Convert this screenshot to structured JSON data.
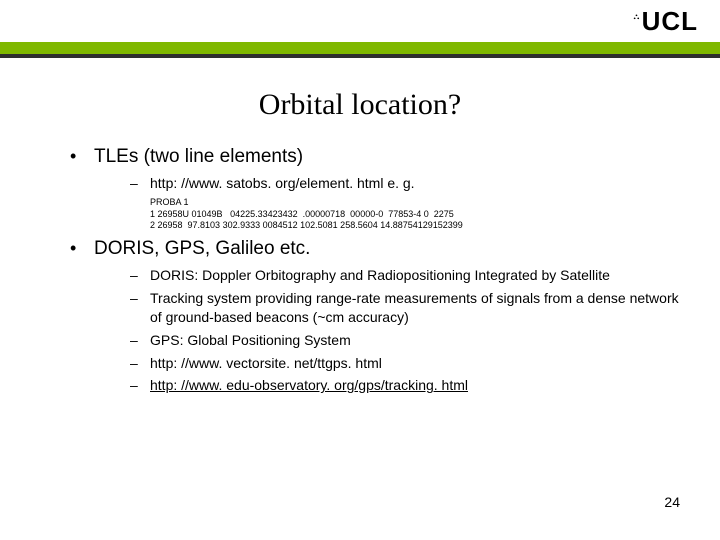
{
  "header": {
    "logo_text": "UCL",
    "logo_portico": "⛬"
  },
  "title": "Orbital location?",
  "bullets": {
    "b1": "TLEs (two line elements)",
    "b1_1": "http: //www. satobs. org/element. html e. g.",
    "tle_line1": "PROBA 1",
    "tle_line2": "1 26958U 01049B   04225.33423432  .00000718  00000-0  77853-4 0  2275",
    "tle_line3": "2 26958  97.8103 302.9333 0084512 102.5081 258.5604 14.88754129152399",
    "b2": "DORIS, GPS, Galileo etc.",
    "b2_1": "DORIS: Doppler Orbitography and Radiopositioning Integrated by Satellite",
    "b2_2": " Tracking system providing range-rate measurements of signals from a dense network of ground-based beacons (~cm accuracy)",
    "b2_3": "GPS: Global Positioning System",
    "b2_4": "http: //www. vectorsite. net/ttgps. html",
    "b2_5": "http: //www. edu-observatory. org/gps/tracking. html"
  },
  "page_number": "24"
}
